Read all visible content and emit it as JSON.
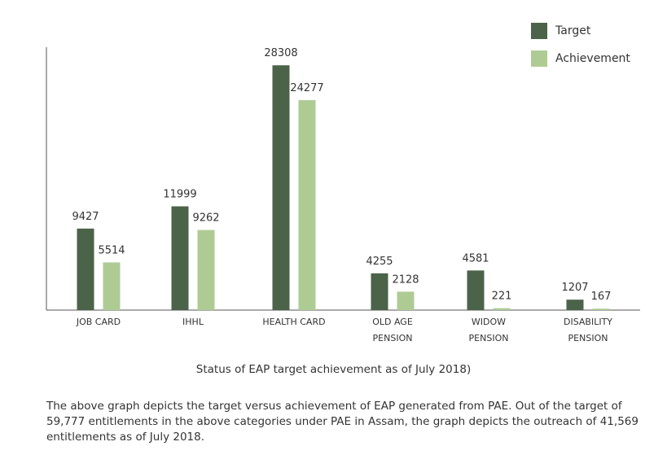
{
  "chart_data": {
    "type": "bar",
    "categories": [
      [
        "JOB CARD"
      ],
      [
        "IHHL"
      ],
      [
        "HEALTH CARD"
      ],
      [
        "OLD AGE",
        "PENSION"
      ],
      [
        "WIDOW",
        "PENSION"
      ],
      [
        "DISABILITY",
        "PENSION"
      ]
    ],
    "series": [
      {
        "name": "Target",
        "color": "#4b6349",
        "values": [
          9427,
          11999,
          28308,
          4255,
          4581,
          1207
        ]
      },
      {
        "name": "Achievement",
        "color": "#aecb94",
        "values": [
          5514,
          9262,
          24277,
          2128,
          221,
          167
        ]
      }
    ],
    "title": "",
    "xlabel": "",
    "ylabel": "",
    "ylim": [
      0,
      32000
    ],
    "grid": false,
    "legend_position": "top-right",
    "data_labels": true
  },
  "caption": "Status of EAP target achievement as of July 2018)",
  "description": "The above graph depicts the target versus achievement of EAP generated from PAE. Out of the target of 59,777 entitlements in the above categories under PAE in Assam, the graph depicts the outreach of 41,569 entitlements as of July 2018."
}
